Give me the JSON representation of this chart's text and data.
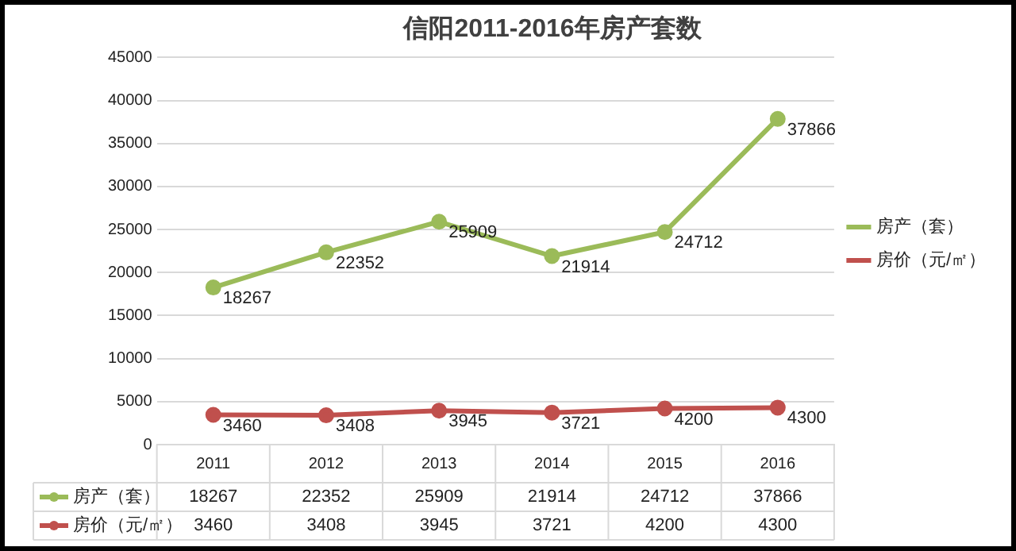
{
  "chart_data": {
    "type": "line",
    "title": "信阳2011-2016年房产套数",
    "categories": [
      "2011",
      "2012",
      "2013",
      "2014",
      "2015",
      "2016"
    ],
    "series": [
      {
        "name": "房产（套）",
        "color": "#9bbb59",
        "values": [
          18267,
          22352,
          25909,
          21914,
          24712,
          37866
        ]
      },
      {
        "name": "房价（元/㎡）",
        "color": "#c0504d",
        "values": [
          3460,
          3408,
          3945,
          3721,
          4200,
          4300
        ]
      }
    ],
    "ylim": [
      0,
      45000
    ],
    "yticks": [
      0,
      5000,
      10000,
      15000,
      20000,
      25000,
      30000,
      35000,
      40000,
      45000
    ],
    "grid": "y",
    "legend": "right",
    "marker": "circle",
    "line_style": "solid",
    "data_labels": true,
    "annotations": [
      {
        "text": "18267",
        "x": "2011",
        "y": 18267
      },
      {
        "text": "22352",
        "x": "2012",
        "y": 22352
      },
      {
        "text": "25909",
        "x": "2013",
        "y": 25909
      },
      {
        "text": "21914",
        "x": "2014",
        "y": 21914
      },
      {
        "text": "24712",
        "x": "2015",
        "y": 24712
      },
      {
        "text": "37866",
        "x": "2016",
        "y": 37866
      },
      {
        "text": "3460",
        "x": "2011",
        "y": 3460
      },
      {
        "text": "3408",
        "x": "2012",
        "y": 3408
      },
      {
        "text": "3945",
        "x": "2013",
        "y": 3945
      },
      {
        "text": "3721",
        "x": "2014",
        "y": 3721
      },
      {
        "text": "4200",
        "x": "2015",
        "y": 4200
      },
      {
        "text": "4300",
        "x": "2016",
        "y": 4300
      }
    ]
  }
}
